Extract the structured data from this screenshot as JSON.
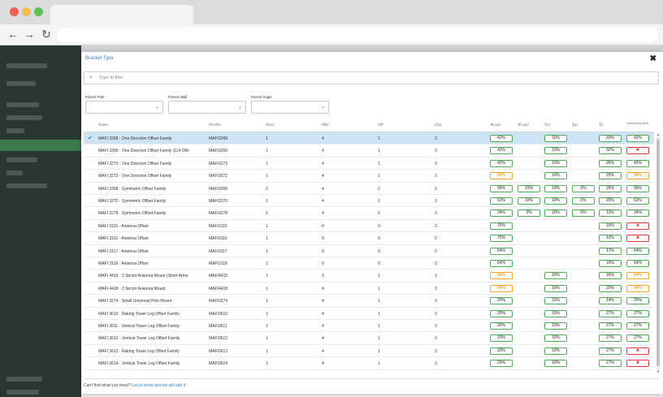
{
  "modal": {
    "title": "Bracket Type",
    "close": "✖",
    "filter_icon": "⌕",
    "filter_placeholder": "Type to filter"
  },
  "selects": [
    {
      "label": "Parent Pole",
      "value": ""
    },
    {
      "label": "Parent Wall",
      "value": ""
    },
    {
      "label": "Parent Angle",
      "value": ""
    }
  ],
  "columns": {
    "name": "Name",
    "partno": "PartNo",
    "arms": "Arms",
    "rrc": "RRC",
    "op": "OP",
    "dist": "Dist",
    "wc1": "Wcap1",
    "wc2": "Wcap2",
    "tu1": "Tu1",
    "tu2": "Tu2",
    "tp": "Tp",
    "gov": "Governing limit"
  },
  "rows": [
    {
      "name": "MAFI 3268 · One Direction Offset Family",
      "part": "MAFI3268",
      "arms": "1",
      "rrc": "4",
      "op": "1",
      "dist": "3",
      "wc1": "42%",
      "wc2": "",
      "tu1": "10%",
      "tu2": "",
      "tp": "33%",
      "gov": "42%",
      "wc1_s": "ok",
      "tu1_s": "ok",
      "tp_s": "ok",
      "gov_s": "ok",
      "selected": true
    },
    {
      "name": "MAFI 3269 · One Direction Offset Family (114 Offs",
      "part": "MAFI3269",
      "arms": "1",
      "rrc": "4",
      "op": "1",
      "dist": "3",
      "wc1": "42%",
      "wc2": "",
      "tu1": "10%",
      "tu2": "",
      "tp": "32%",
      "gov": "✖",
      "wc1_s": "ok",
      "tu1_s": "ok",
      "tp_s": "ok",
      "gov_s": "bad"
    },
    {
      "name": "MAFI 3273 · One Direction Offset Family",
      "part": "MAFI3273",
      "arms": "1",
      "rrc": "4",
      "op": "1",
      "dist": "3",
      "wc1": "42%",
      "wc2": "",
      "tu1": "10%",
      "tu2": "",
      "tp": "26%",
      "gov": "42%",
      "wc1_s": "ok",
      "tu1_s": "ok",
      "tp_s": "ok",
      "gov_s": "ok"
    },
    {
      "name": "MAFI 3272 · One Direction Offset Family",
      "part": "MAFI3272",
      "arms": "1",
      "rrc": "4",
      "op": "1",
      "dist": "3",
      "wc1": "84%",
      "wc2": "",
      "tu1": "10%",
      "tu2": "",
      "tp": "25%",
      "gov": "84%",
      "wc1_s": "warn",
      "tu1_s": "ok",
      "tp_s": "ok",
      "gov_s": "warn"
    },
    {
      "name": "MAFI 3268 · Symmetric Offset Family",
      "part": "MAFI3268",
      "arms": "2",
      "rrc": "4",
      "op": "2",
      "dist": "3",
      "wc1": "56%",
      "wc2": "15%",
      "tu1": "10%",
      "tu2": "0%",
      "tp": "26%",
      "gov": "56%",
      "wc1_s": "ok",
      "wc2_s": "ok",
      "tu1_s": "ok",
      "tu2_s": "ok",
      "tp_s": "ok",
      "gov_s": "ok"
    },
    {
      "name": "MAFI 3270 · Symmetric Offset Family",
      "part": "MAFI3270",
      "arms": "2",
      "rrc": "4",
      "op": "2",
      "dist": "3",
      "wc1": "63%",
      "wc2": "10%",
      "tu1": "10%",
      "tu2": "0%",
      "tp": "29%",
      "gov": "63%",
      "wc1_s": "ok",
      "wc2_s": "ok",
      "tu1_s": "ok",
      "tu2_s": "ok",
      "tp_s": "ok",
      "gov_s": "ok"
    },
    {
      "name": "MAFI 3278 · Symmetric Offset Family",
      "part": "MAFI3278",
      "arms": "2",
      "rrc": "4",
      "op": "2",
      "dist": "3",
      "wc1": "34%",
      "wc2": "9%",
      "tu1": "10%",
      "tu2": "0%",
      "tp": "11%",
      "gov": "34%",
      "wc1_s": "ok",
      "wc2_s": "ok",
      "tu1_s": "ok",
      "tu2_s": "ok",
      "tp_s": "ok",
      "gov_s": "ok"
    },
    {
      "name": "MAFI 3115 · Antenna Offset",
      "part": "MAFI3115",
      "arms": "1",
      "rrc": "0",
      "op": "0",
      "dist": "0",
      "wc1": "75%",
      "wc2": "",
      "tu1": "",
      "tu2": "",
      "tp": "15%",
      "gov": "✖",
      "wc1_s": "ok",
      "tp_s": "ok",
      "gov_s": "bad"
    },
    {
      "name": "MAFI 3116 · Antenna Offset",
      "part": "MAFI3116",
      "arms": "1",
      "rrc": "0",
      "op": "0",
      "dist": "0",
      "wc1": "75%",
      "wc2": "",
      "tu1": "",
      "tu2": "",
      "tp": "13%",
      "gov": "✖",
      "wc1_s": "ok",
      "tp_s": "ok",
      "gov_s": "bad"
    },
    {
      "name": "MAFI 3117 · Antenna Offset",
      "part": "MAFI3117",
      "arms": "1",
      "rrc": "0",
      "op": "0",
      "dist": "0",
      "wc1": "54%",
      "wc2": "",
      "tu1": "",
      "tu2": "",
      "tp": "17%",
      "gov": "54%",
      "wc1_s": "ok",
      "tp_s": "ok",
      "gov_s": "ok"
    },
    {
      "name": "MAFI 3118 · Antenna Offset",
      "part": "MAFI3118",
      "arms": "1",
      "rrc": "0",
      "op": "0",
      "dist": "0",
      "wc1": "54%",
      "wc2": "",
      "tu1": "",
      "tu2": "",
      "tp": "15%",
      "gov": "54%",
      "wc1_s": "ok",
      "tp_s": "ok",
      "gov_s": "ok"
    },
    {
      "name": "MAFI 4415 · 3 Sector Antenna Mount (Short Arms",
      "part": "MAFI4415",
      "arms": "1",
      "rrc": "3",
      "op": "1",
      "dist": "3",
      "wc1": "84%",
      "wc2": "",
      "tu1": "10%",
      "tu2": "",
      "tp": "16%",
      "gov": "84%",
      "wc1_s": "warn",
      "tu1_s": "ok",
      "tp_s": "ok",
      "gov_s": "warn"
    },
    {
      "name": "MAFI 4418 · 3 Sector Antenna Mount",
      "part": "MAFI4418",
      "arms": "1",
      "rrc": "4",
      "op": "1",
      "dist": "3",
      "wc1": "84%",
      "wc2": "",
      "tu1": "10%",
      "tu2": "",
      "tp": "20%",
      "gov": "84%",
      "wc1_s": "warn",
      "tu1_s": "ok",
      "tp_s": "ok",
      "gov_s": "warn"
    },
    {
      "name": "MAFI 3274 · Small Universal Pole Mount",
      "part": "MAFI3274",
      "arms": "1",
      "rrc": "4",
      "op": "1",
      "dist": "3",
      "wc1": "20%",
      "wc2": "",
      "tu1": "10%",
      "tu2": "",
      "tp": "14%",
      "gov": "20%",
      "wc1_s": "ok",
      "tu1_s": "ok",
      "tp_s": "ok",
      "gov_s": "ok"
    },
    {
      "name": "MAFI 3610 · Raking Tower Leg Offset Family",
      "part": "MAFI3610",
      "arms": "1",
      "rrc": "4",
      "op": "1",
      "dist": "3",
      "wc1": "20%",
      "wc2": "",
      "tu1": "10%",
      "tu2": "",
      "tp": "27%",
      "gov": "27%",
      "wc1_s": "ok",
      "tu1_s": "ok",
      "tp_s": "ok",
      "gov_s": "ok"
    },
    {
      "name": "MAFI 3611 · Vertical Tower Leg Offset Family",
      "part": "MAFI3611",
      "arms": "1",
      "rrc": "4",
      "op": "1",
      "dist": "3",
      "wc1": "20%",
      "wc2": "",
      "tu1": "10%",
      "tu2": "",
      "tp": "27%",
      "gov": "27%",
      "wc1_s": "ok",
      "tu1_s": "ok",
      "tp_s": "ok",
      "gov_s": "ok"
    },
    {
      "name": "MAFI 3612 · Vertical Tower Leg Offset Family",
      "part": "MAFI3612",
      "arms": "1",
      "rrc": "4",
      "op": "1",
      "dist": "3",
      "wc1": "20%",
      "wc2": "",
      "tu1": "10%",
      "tu2": "",
      "tp": "27%",
      "gov": "27%",
      "wc1_s": "ok",
      "tu1_s": "ok",
      "tp_s": "ok",
      "gov_s": "ok"
    },
    {
      "name": "MAFI 3613 · Raking Tower Leg Offset Family",
      "part": "MAFI3613",
      "arms": "1",
      "rrc": "4",
      "op": "1",
      "dist": "3",
      "wc1": "20%",
      "wc2": "",
      "tu1": "10%",
      "tu2": "",
      "tp": "27%",
      "gov": "✖",
      "wc1_s": "ok",
      "tu1_s": "ok",
      "tp_s": "ok",
      "gov_s": "bad"
    },
    {
      "name": "MAFI 3614 · Vertical Tower Leg Offset Family",
      "part": "MAFI3614",
      "arms": "1",
      "rrc": "4",
      "op": "1",
      "dist": "3",
      "wc1": "20%",
      "wc2": "",
      "tu1": "10%",
      "tu2": "",
      "tp": "27%",
      "gov": "✖",
      "wc1_s": "ok",
      "tu1_s": "ok",
      "tp_s": "ok",
      "gov_s": "bad"
    }
  ],
  "footer": {
    "text": "Can't find what you need? ",
    "link": "Let us know and we will add it."
  },
  "colors": {
    "ok": "#4caf50",
    "warn": "#f5a623",
    "bad": "#e53935",
    "accent": "#3d7ac2",
    "selected_row": "#cfe3f7"
  }
}
